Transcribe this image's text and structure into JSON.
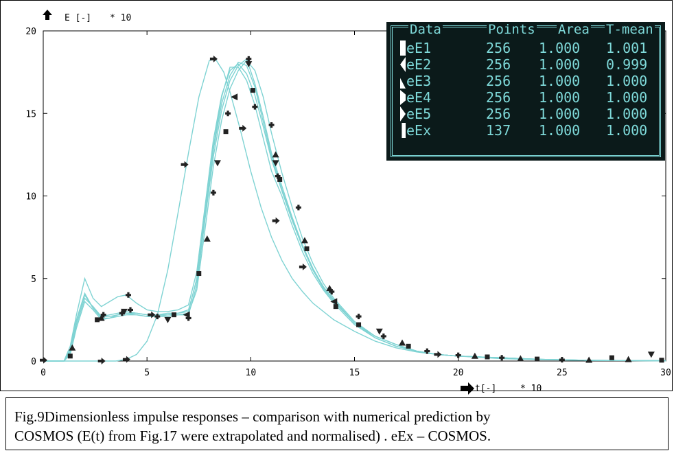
{
  "chart_data": {
    "type": "line",
    "y_axis_label": "E [-]",
    "y_axis_multiplier": "* 10",
    "x_axis_label": "t[-]",
    "x_axis_multiplier": "* 10",
    "ylim": [
      0,
      20
    ],
    "xlim": [
      0,
      30
    ],
    "y_ticks": [
      "0",
      "5",
      "10",
      "15",
      "20"
    ],
    "x_ticks": [
      "0",
      "5",
      "10",
      "15",
      "20",
      "25",
      "30"
    ],
    "line_color": "#7fd3d3",
    "marker_color": "#222222",
    "legend": {
      "headers": [
        "Data",
        "Points",
        "Area",
        "T-mean"
      ],
      "rows": [
        {
          "data": "eE1",
          "points": "256",
          "area": "1.000",
          "t_mean": "1.001"
        },
        {
          "data": "eE2",
          "points": "256",
          "area": "1.000",
          "t_mean": "0.999"
        },
        {
          "data": "eE3",
          "points": "256",
          "area": "1.000",
          "t_mean": "1.000"
        },
        {
          "data": "eE4",
          "points": "256",
          "area": "1.000",
          "t_mean": "1.000"
        },
        {
          "data": "eE5",
          "points": "256",
          "area": "1.000",
          "t_mean": "1.000"
        },
        {
          "data": "eEx",
          "points": "137",
          "area": "1.000",
          "t_mean": "1.000"
        }
      ],
      "placement": "top-right"
    },
    "series": [
      {
        "x": [
          0,
          1,
          1.3,
          1.6,
          2,
          2.4,
          2.8,
          3.2,
          3.6,
          4,
          4.5,
          5,
          5.5,
          6,
          6.5,
          7,
          7.4,
          7.8,
          8.2,
          8.6,
          9,
          9.4,
          9.8,
          10.2,
          10.6,
          11,
          11.5,
          12,
          12.5,
          13,
          13.5,
          14,
          15,
          16,
          17,
          18,
          19,
          20,
          22,
          24,
          26,
          28,
          30
        ],
        "y": [
          0,
          0,
          0.5,
          2.2,
          3.8,
          3.3,
          2.7,
          2.8,
          2.9,
          3,
          2.9,
          2.8,
          2.8,
          2.9,
          2.9,
          3,
          5,
          9,
          13,
          16,
          17.8,
          17.8,
          17,
          15.5,
          13.5,
          11.5,
          10,
          8.2,
          6.6,
          5.3,
          4.3,
          3.5,
          2.2,
          1.4,
          0.9,
          0.6,
          0.4,
          0.3,
          0.2,
          0.1,
          0.05,
          0.03,
          0.02
        ]
      },
      {
        "x": [
          0,
          1,
          1.3,
          1.6,
          2,
          2.4,
          2.8,
          3.2,
          3.6,
          4,
          4.5,
          5,
          5.5,
          6,
          6.5,
          7,
          7.4,
          7.8,
          8.2,
          8.6,
          9,
          9.4,
          9.8,
          10.2,
          10.6,
          11,
          11.5,
          12,
          12.5,
          13,
          13.5,
          14,
          15,
          16,
          17,
          18,
          19,
          20,
          22,
          24,
          26,
          28,
          30
        ],
        "y": [
          0,
          0,
          0.7,
          2.5,
          4.1,
          3.2,
          2.6,
          2.6,
          2.8,
          2.9,
          2.8,
          2.7,
          2.7,
          2.8,
          2.8,
          2.8,
          4.6,
          8.6,
          12.4,
          15.2,
          17,
          17.9,
          18.3,
          16.8,
          14.8,
          12.6,
          10.6,
          8.7,
          7,
          5.6,
          4.5,
          3.7,
          2.3,
          1.5,
          1,
          0.6,
          0.4,
          0.3,
          0.2,
          0.1,
          0.05,
          0.03,
          0.02
        ]
      },
      {
        "x": [
          0,
          1,
          1.3,
          1.6,
          2,
          2.4,
          2.8,
          3.2,
          3.6,
          4,
          4.5,
          5,
          5.5,
          6,
          6.5,
          7,
          7.4,
          7.8,
          8.2,
          8.6,
          9,
          9.4,
          9.8,
          10.2,
          10.6,
          11,
          11.5,
          12,
          12.5,
          13,
          13.5,
          14,
          15,
          16,
          17,
          18,
          19,
          20,
          22,
          24,
          26,
          28,
          30
        ],
        "y": [
          0,
          0,
          0.4,
          2,
          3.6,
          3.1,
          2.5,
          2.6,
          2.7,
          2.8,
          2.8,
          2.7,
          2.7,
          2.7,
          2.8,
          2.9,
          4.3,
          8,
          11.8,
          14.6,
          16.5,
          17.6,
          18.2,
          17.6,
          16,
          13.8,
          11.4,
          9.3,
          7.4,
          5.9,
          4.7,
          3.8,
          2.4,
          1.5,
          1,
          0.6,
          0.4,
          0.3,
          0.2,
          0.1,
          0.05,
          0.03,
          0.02
        ]
      },
      {
        "x": [
          0,
          1,
          1.3,
          1.6,
          2,
          2.4,
          2.8,
          3.2,
          3.6,
          4,
          4.5,
          5,
          5.5,
          6,
          6.5,
          7,
          7.4,
          7.8,
          8.2,
          8.6,
          9,
          9.4,
          9.8,
          10.2,
          10.6,
          11,
          11.5,
          12,
          12.5,
          13,
          13.5,
          14,
          15,
          16,
          17,
          18,
          19,
          20,
          22,
          24,
          26,
          28,
          30
        ],
        "y": [
          0,
          0,
          0.9,
          2.8,
          5,
          3.8,
          3.3,
          3.6,
          3.9,
          4,
          3.5,
          3.1,
          3,
          3,
          3.1,
          3.4,
          5.4,
          9.4,
          13.4,
          16.1,
          17.6,
          18,
          17.4,
          16.1,
          14.2,
          12.2,
          10.3,
          8.5,
          6.9,
          5.5,
          4.4,
          3.6,
          2.3,
          1.4,
          0.9,
          0.6,
          0.4,
          0.3,
          0.2,
          0.1,
          0.05,
          0.03,
          0.02
        ]
      },
      {
        "x": [
          0,
          1,
          1.3,
          1.6,
          2,
          2.4,
          2.8,
          3.2,
          3.6,
          4,
          4.5,
          5,
          5.5,
          6,
          6.5,
          7,
          7.4,
          7.8,
          8.2,
          8.6,
          9,
          9.4,
          9.8,
          10.2,
          10.6,
          11,
          11.5,
          12,
          12.5,
          13,
          13.5,
          14,
          15,
          16,
          17,
          18,
          19,
          20,
          22,
          24,
          26,
          28,
          30
        ],
        "y": [
          0,
          0,
          0.6,
          2.4,
          4,
          3.2,
          2.7,
          2.7,
          2.8,
          2.9,
          2.9,
          2.8,
          2.8,
          2.8,
          2.9,
          3.1,
          4.9,
          8.8,
          12.8,
          15.6,
          17.3,
          18.1,
          17.9,
          16.6,
          14.5,
          12.4,
          10.4,
          8.6,
          6.9,
          5.5,
          4.5,
          3.7,
          2.3,
          1.5,
          1,
          0.6,
          0.4,
          0.3,
          0.2,
          0.1,
          0.05,
          0.03,
          0.02
        ]
      },
      {
        "x": [
          0,
          1,
          2,
          2.7,
          3.5,
          4,
          4.5,
          5,
          5.5,
          6,
          6.5,
          7,
          7.5,
          8,
          8.3,
          8.7,
          9,
          9.5,
          10,
          10.5,
          11,
          11.5,
          12,
          12.5,
          13,
          14,
          15,
          16,
          17,
          18,
          19,
          20,
          22,
          24,
          26,
          28,
          30
        ],
        "y": [
          0,
          0,
          0,
          0,
          0,
          0.1,
          0.4,
          1.2,
          2.8,
          5.5,
          9,
          12.6,
          16,
          18.2,
          18.3,
          17.5,
          16.3,
          14,
          11.5,
          9.3,
          7.5,
          6.1,
          5,
          4.2,
          3.5,
          2.5,
          1.8,
          1.2,
          0.8,
          0.55,
          0.4,
          0.3,
          0.15,
          0.08,
          0.05,
          0.03,
          0.02
        ]
      }
    ],
    "markers": [
      [
        0,
        0.05,
        "tri-right"
      ],
      [
        1.3,
        0.3,
        "sq"
      ],
      [
        1.4,
        0.8,
        "tri-up"
      ],
      [
        2.6,
        2.5,
        "sq"
      ],
      [
        2.8,
        2.6,
        "tri-up"
      ],
      [
        2.9,
        2.8,
        "plus"
      ],
      [
        3.8,
        2.9,
        "plus"
      ],
      [
        3.9,
        3.0,
        "tri-down"
      ],
      [
        4.1,
        4.0,
        "plus"
      ],
      [
        4.2,
        3.1,
        "plus"
      ],
      [
        5.2,
        2.8,
        "tri-right"
      ],
      [
        5.5,
        2.7,
        "plus"
      ],
      [
        6,
        2.5,
        "tri-down"
      ],
      [
        6.3,
        2.8,
        "sq"
      ],
      [
        6.9,
        2.8,
        "tri-left"
      ],
      [
        7.0,
        2.6,
        "plus"
      ],
      [
        7.5,
        5.3,
        "sq"
      ],
      [
        7.9,
        7.4,
        "tri-up"
      ],
      [
        8.2,
        10.2,
        "plus"
      ],
      [
        8.4,
        12.0,
        "tri-down"
      ],
      [
        8.8,
        13.9,
        "sq"
      ],
      [
        8.9,
        15.0,
        "plus"
      ],
      [
        9.2,
        16.0,
        "tri-left"
      ],
      [
        9.6,
        14.1,
        "tri-right"
      ],
      [
        9.9,
        18.3,
        "plus"
      ],
      [
        9.9,
        18.0,
        "tri-down"
      ],
      [
        10.1,
        16.4,
        "sq"
      ],
      [
        10.2,
        15.4,
        "plus"
      ],
      [
        11,
        14.3,
        "plus"
      ],
      [
        11.2,
        12.5,
        "tri-up"
      ],
      [
        11.2,
        12.0,
        "tri-down"
      ],
      [
        11.3,
        11.2,
        "plus"
      ],
      [
        11.4,
        11.0,
        "sq"
      ],
      [
        11.2,
        8.5,
        "tri-right"
      ],
      [
        12.3,
        9.3,
        "plus"
      ],
      [
        12.6,
        7.3,
        "tri-up"
      ],
      [
        12.7,
        6.8,
        "sq"
      ],
      [
        12.5,
        5.7,
        "tri-right"
      ],
      [
        13.8,
        4.4,
        "tri-up"
      ],
      [
        13.9,
        4.2,
        "plus"
      ],
      [
        14,
        3.6,
        "tri-left"
      ],
      [
        14.1,
        3.3,
        "sq"
      ],
      [
        15.2,
        2.7,
        "plus"
      ],
      [
        15.2,
        2.2,
        "sq"
      ],
      [
        16.2,
        1.8,
        "tri-down"
      ],
      [
        16.4,
        1.5,
        "plus"
      ],
      [
        17.3,
        1.1,
        "tri-up"
      ],
      [
        17.6,
        0.9,
        "sq"
      ],
      [
        18.5,
        0.6,
        "plus"
      ],
      [
        19,
        0.4,
        "tri-right"
      ],
      [
        20,
        0.35,
        "plus"
      ],
      [
        20.8,
        0.3,
        "tri-up"
      ],
      [
        21.4,
        0.25,
        "sq"
      ],
      [
        22.1,
        0.2,
        "plus"
      ],
      [
        23,
        0.15,
        "tri-up"
      ],
      [
        23.8,
        0.12,
        "sq"
      ],
      [
        25,
        0.08,
        "plus"
      ],
      [
        26.3,
        0.06,
        "tri-up"
      ],
      [
        27.4,
        0.2,
        "sq"
      ],
      [
        28.2,
        0.1,
        "tri-up"
      ],
      [
        29.3,
        0.4,
        "tri-down"
      ],
      [
        29.8,
        0.05,
        "sq"
      ],
      [
        8.2,
        18.3,
        "tri-right"
      ],
      [
        4,
        0.1,
        "tri-right"
      ],
      [
        2.8,
        0,
        "tri-right"
      ],
      [
        6.8,
        11.9,
        "tri-right"
      ]
    ]
  },
  "caption": {
    "line1": "Fig.9Dimensionless impulse responses – comparison with numerical prediction by",
    "line2": "COSMOS (E(t) from Fig.17 were extrapolated and normalised) . eEx – COSMOS."
  }
}
